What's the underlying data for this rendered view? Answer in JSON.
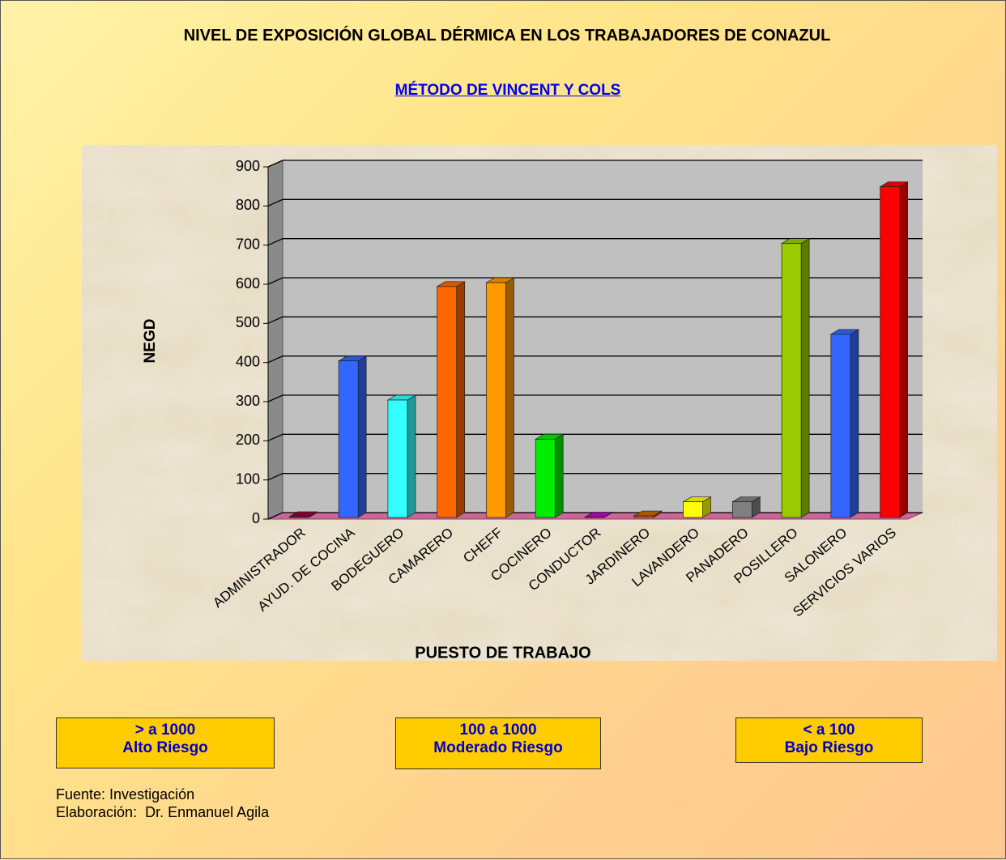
{
  "chart_data": {
    "type": "bar3d",
    "title": "NIVEL DE EXPOSICIÓN GLOBAL DÉRMICA EN LOS TRABAJADORES DE CONAZUL",
    "subtitle": "MÉTODO DE VINCENT Y COLS",
    "x_label": "PUESTO DE TRABAJO",
    "y_label": "NEGD",
    "categories": [
      "ADMINISTRADOR",
      "AYUD. DE COCINA",
      "BODEGUERO",
      "CAMARERO",
      "CHEFF",
      "COCINERO",
      "CONDUCTOR",
      "JARDINERO",
      "LAVANDERO",
      "PANADERO",
      "POSILLERO",
      "SALONERO",
      "SERVICIOS VARIOS"
    ],
    "values": [
      2,
      400,
      300,
      590,
      600,
      200,
      1,
      4,
      40,
      40,
      700,
      468,
      845
    ],
    "colors": [
      "#990033",
      "#3366ff",
      "#33ffff",
      "#ff6600",
      "#ff9900",
      "#00ee00",
      "#cc00cc",
      "#cc6600",
      "#ffff00",
      "#808080",
      "#99cc00",
      "#3366ff",
      "#ff0000"
    ],
    "ylim": [
      0,
      900
    ],
    "yticks": [
      0,
      100,
      200,
      300,
      400,
      500,
      600,
      700,
      800,
      900
    ],
    "grid": true
  },
  "legend_boxes": [
    {
      "range": "> a 1000",
      "label": "Alto Riesgo"
    },
    {
      "range": "100 a 1000",
      "label": "Moderado Riesgo"
    },
    {
      "range": "< a 100",
      "label": "Bajo Riesgo"
    }
  ],
  "source": "Fuente: Investigación",
  "credit": "Elaboración:  Dr. Enmanuel Agila"
}
